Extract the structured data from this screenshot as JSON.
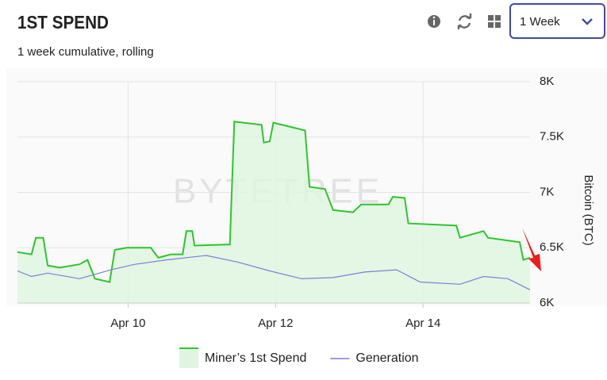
{
  "header": {
    "title": "1ST SPEND",
    "subtitle": "1 week cumulative, rolling",
    "range_select": "1 Week"
  },
  "chart_data": {
    "type": "line",
    "watermark": "BYTETREE",
    "y_axis_label": "Bitcoin (BTC)",
    "xlim": [
      8.5,
      15.45
    ],
    "xticks": [
      {
        "value": 10,
        "label": "Apr 10"
      },
      {
        "value": 12,
        "label": "Apr 12"
      },
      {
        "value": 14,
        "label": "Apr 14"
      }
    ],
    "ylim": [
      6000,
      8000
    ],
    "yticks": [
      {
        "value": 6000,
        "label": "6K"
      },
      {
        "value": 6500,
        "label": "6.5K"
      },
      {
        "value": 7000,
        "label": "7K"
      },
      {
        "value": 7500,
        "label": "7.5K"
      },
      {
        "value": 8000,
        "label": "8K"
      }
    ],
    "grid": true,
    "legend": "bottom",
    "series": [
      {
        "name": "Miner’s 1st Spend",
        "color": "#2ec52e",
        "fill": "#dff5df",
        "x": [
          8.5,
          8.69,
          8.75,
          8.85,
          8.91,
          9.07,
          9.34,
          9.45,
          9.55,
          9.75,
          9.82,
          9.98,
          10.31,
          10.41,
          10.58,
          10.74,
          10.79,
          10.87,
          10.9,
          11.38,
          11.44,
          11.81,
          11.84,
          11.92,
          11.97,
          12.4,
          12.46,
          12.67,
          12.78,
          13.05,
          13.16,
          13.53,
          13.59,
          13.75,
          13.8,
          14.45,
          14.5,
          14.82,
          14.88,
          15.31,
          15.36,
          15.45
        ],
        "values": [
          6460,
          6440,
          6590,
          6590,
          6340,
          6320,
          6350,
          6390,
          6220,
          6190,
          6480,
          6500,
          6500,
          6410,
          6440,
          6440,
          6650,
          6650,
          6520,
          6530,
          7640,
          7610,
          7450,
          7460,
          7630,
          7560,
          7050,
          7030,
          6840,
          6820,
          6890,
          6890,
          6960,
          6950,
          6720,
          6700,
          6590,
          6650,
          6590,
          6550,
          6390,
          6410
        ]
      },
      {
        "name": "Generation",
        "color": "#7b7fd6",
        "x": [
          8.5,
          8.69,
          8.91,
          9.34,
          9.77,
          10.09,
          10.52,
          11.06,
          11.49,
          11.92,
          12.35,
          12.78,
          13.21,
          13.64,
          13.96,
          14.5,
          14.82,
          15.15,
          15.45
        ],
        "values": [
          6290,
          6240,
          6270,
          6220,
          6300,
          6350,
          6390,
          6430,
          6370,
          6290,
          6220,
          6230,
          6280,
          6300,
          6190,
          6170,
          6240,
          6220,
          6120
        ]
      }
    ]
  }
}
